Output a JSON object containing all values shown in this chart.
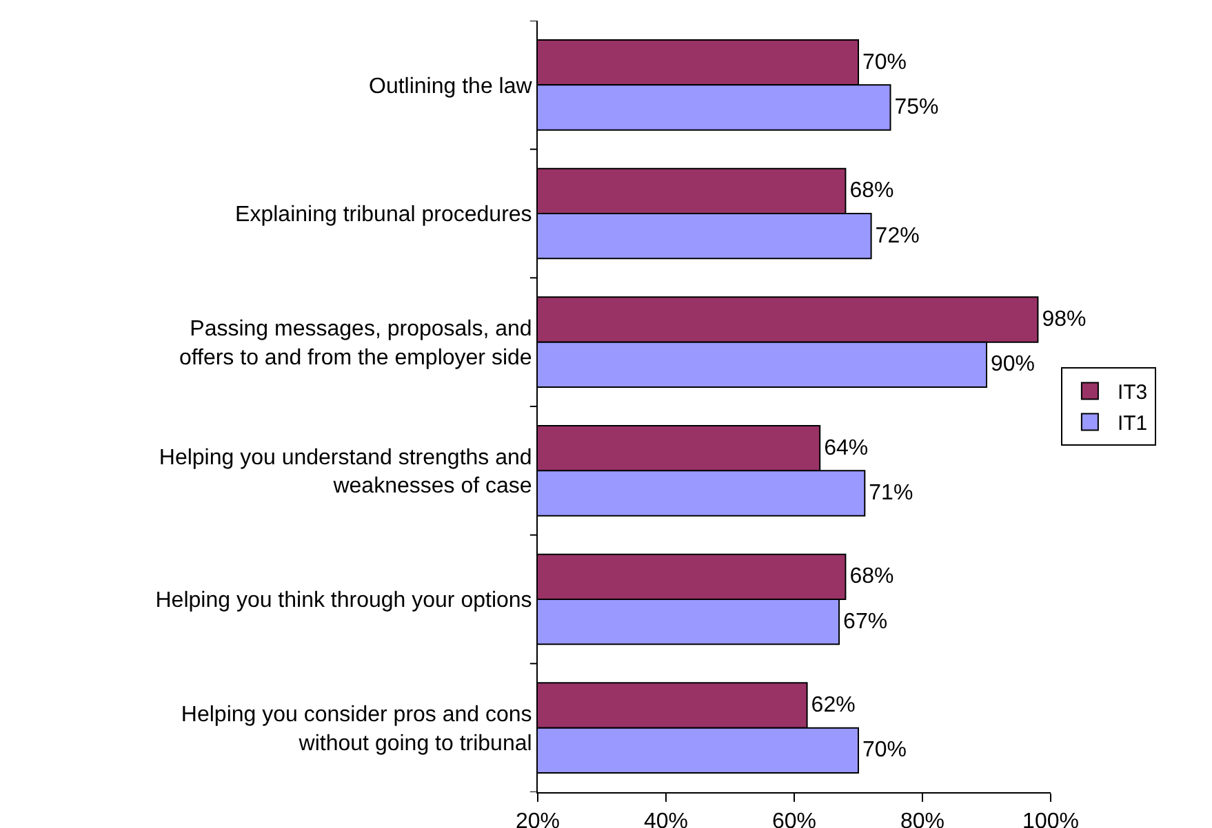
{
  "chart_data": {
    "type": "bar",
    "orientation": "horizontal",
    "categories": [
      "Outlining the law",
      "Explaining tribunal procedures",
      "Passing messages, proposals, and offers to and from the employer side",
      "Helping you understand strengths and weaknesses of case",
      "Helping you think through your options",
      "Helping you consider pros and cons without going to tribunal"
    ],
    "series": [
      {
        "name": "IT3",
        "color": "#993366",
        "values": [
          70,
          68,
          98,
          64,
          68,
          62
        ],
        "value_labels": [
          "70%",
          "68%",
          "98%",
          "64%",
          "68%",
          "62%"
        ]
      },
      {
        "name": "IT1",
        "color": "#9999ff",
        "values": [
          75,
          72,
          90,
          71,
          67,
          70
        ],
        "value_labels": [
          "75%",
          "72%",
          "90%",
          "71%",
          "67%",
          "70%"
        ]
      }
    ],
    "xlim": [
      20,
      100
    ],
    "xticks": [
      {
        "value": 20,
        "label": "20%"
      },
      {
        "value": 40,
        "label": "40%"
      },
      {
        "value": 60,
        "label": "60%"
      },
      {
        "value": 80,
        "label": "80%"
      },
      {
        "value": 100,
        "label": "100%"
      }
    ],
    "grid": false,
    "legend": "right"
  }
}
